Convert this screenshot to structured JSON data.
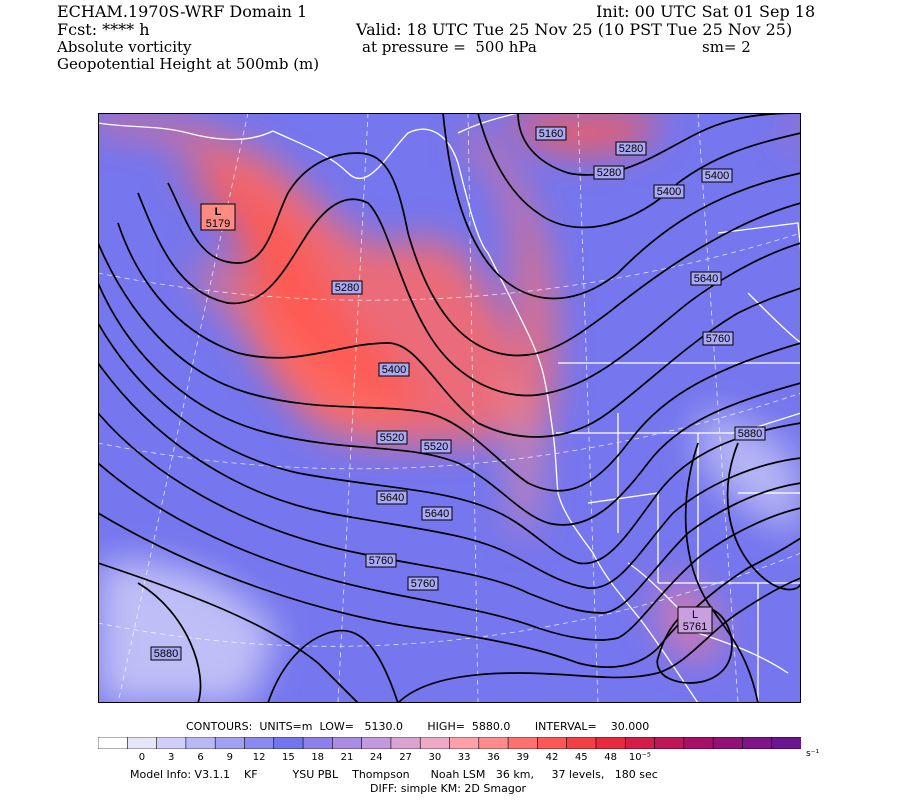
{
  "header": {
    "model_title": "ECHAM.1970S-WRF Domain 1",
    "init": "Init: 00 UTC Sat 01 Sep 18",
    "fcst": "Fcst: **** h",
    "valid": "Valid: 18 UTC Tue 25 Nov 25 (10 PST Tue 25 Nov 25)",
    "field1": "Absolute vorticity",
    "pressure": "at pressure =  500 hPa",
    "smoothing": "sm= 2",
    "field2": "Geopotential Height at 500mb (m)"
  },
  "colors": {
    "vorticity_low": "#6b6bf0",
    "vorticity_high": "#ff5a4e",
    "contour": "#000000",
    "coastline": "#ffffff"
  },
  "map": {
    "contour_labels": [
      {
        "value": "5160"
      },
      {
        "value": "5280"
      },
      {
        "value": "5280"
      },
      {
        "value": "5400"
      },
      {
        "value": "5400"
      },
      {
        "value": "5640"
      },
      {
        "value": "5760"
      },
      {
        "value": "5280"
      },
      {
        "value": "5400"
      },
      {
        "value": "5520"
      },
      {
        "value": "5520"
      },
      {
        "value": "5640"
      },
      {
        "value": "5640"
      },
      {
        "value": "5760"
      },
      {
        "value": "5760"
      },
      {
        "value": "5880"
      },
      {
        "value": "5880"
      }
    ],
    "lows": [
      {
        "symbol": "L",
        "value": "5179"
      },
      {
        "symbol": "L",
        "value": "5761"
      }
    ]
  },
  "footer": {
    "contours_line": "CONTOURS:  UNITS=m  LOW=   5130.0       HIGH=  5880.0       INTERVAL=    30.000",
    "colorbar_ticks": [
      "0",
      "3",
      "6",
      "9",
      "12",
      "15",
      "18",
      "21",
      "24",
      "27",
      "30",
      "33",
      "36",
      "39",
      "42",
      "45",
      "48",
      "10⁻⁵"
    ],
    "colorbar_unit": "s⁻¹",
    "colorbar_colors": [
      "#ffffff",
      "#e6e6fb",
      "#cfcff9",
      "#b8b8f7",
      "#a0a0f4",
      "#8a8af2",
      "#7474ef",
      "#8e80ec",
      "#a88ce6",
      "#c498de",
      "#dba2d4",
      "#f0a9c5",
      "#ffa0a8",
      "#ff8a8e",
      "#ff7070",
      "#ff5757",
      "#f63f45",
      "#e82a3e",
      "#d41d48",
      "#c01556",
      "#a90f66",
      "#931077",
      "#7e1488",
      "#6c1590"
    ],
    "model_info": "Model Info: V3.1.1    KF          YSU PBL    Thompson      Noah LSM   36 km,     37 levels,   180 sec",
    "diff": "DIFF: simple KM: 2D Smagor"
  }
}
